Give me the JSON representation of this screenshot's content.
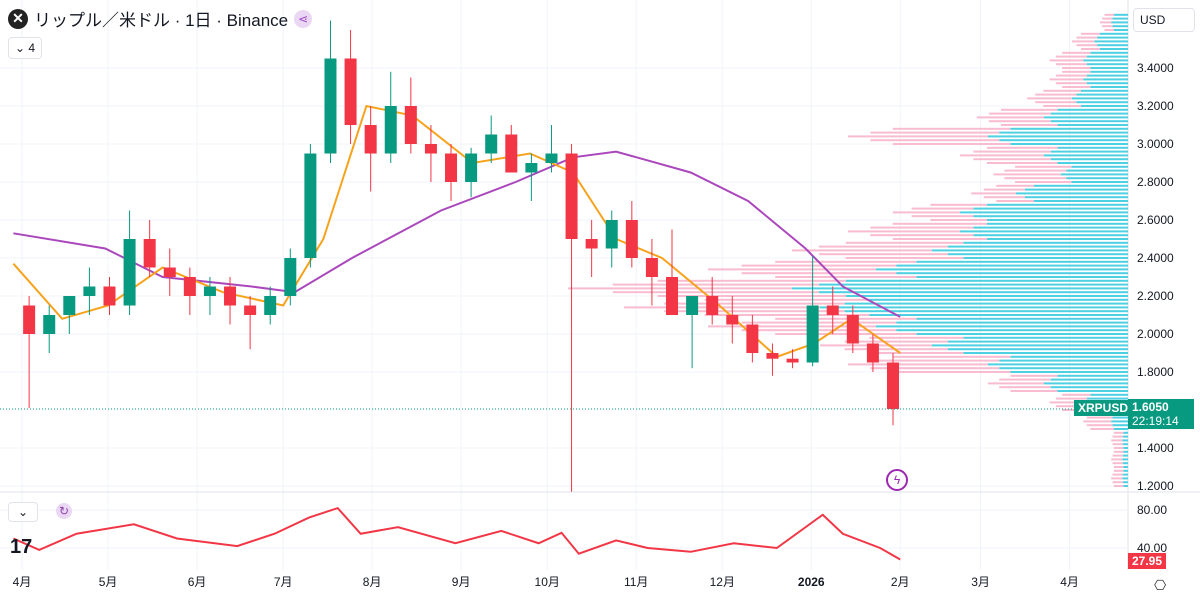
{
  "header": {
    "title": "リップル／米ドル · 1日 · Binance",
    "indicators_count": "4",
    "currency": "USD"
  },
  "price_tag": {
    "symbol": "XRPUSD",
    "price": "1.6050",
    "countdown": "22:19:14",
    "color": "#089981"
  },
  "rsi_tag": {
    "value": "27.95",
    "color": "#f23645"
  },
  "chart_data": [
    {
      "type": "candlestick",
      "yaxis_ticks": [
        "3.4000",
        "3.2000",
        "3.0000",
        "2.8000",
        "2.6000",
        "2.4000",
        "2.2000",
        "2.0000",
        "1.8000",
        "1.4000",
        "1.2000"
      ],
      "ylim": [
        1.15,
        3.7
      ],
      "xaxis_ticks": [
        "4月",
        "5月",
        "6月",
        "7月",
        "8月",
        "9月",
        "10月",
        "11月",
        "12月",
        "2026",
        "2月",
        "3月",
        "4月"
      ],
      "up_color": "#089981",
      "down_color": "#f23645",
      "candles_weekly": [
        [
          "2025-03-31",
          2.15,
          2.2,
          1.61,
          2.0
        ],
        [
          "2025-04-07",
          2.0,
          2.15,
          1.9,
          2.1
        ],
        [
          "2025-04-14",
          2.1,
          2.2,
          2.0,
          2.2
        ],
        [
          "2025-04-21",
          2.2,
          2.35,
          2.1,
          2.25
        ],
        [
          "2025-04-28",
          2.25,
          2.3,
          2.1,
          2.15
        ],
        [
          "2025-05-05",
          2.15,
          2.65,
          2.1,
          2.5
        ],
        [
          "2025-05-12",
          2.5,
          2.6,
          2.3,
          2.35
        ],
        [
          "2025-05-19",
          2.35,
          2.45,
          2.2,
          2.3
        ],
        [
          "2025-05-26",
          2.3,
          2.35,
          2.1,
          2.2
        ],
        [
          "2025-06-02",
          2.2,
          2.3,
          2.1,
          2.25
        ],
        [
          "2025-06-09",
          2.25,
          2.3,
          2.05,
          2.15
        ],
        [
          "2025-06-16",
          2.15,
          2.2,
          1.92,
          2.1
        ],
        [
          "2025-06-23",
          2.1,
          2.25,
          2.05,
          2.2
        ],
        [
          "2025-06-30",
          2.2,
          2.45,
          2.15,
          2.4
        ],
        [
          "2025-07-07",
          2.4,
          3.0,
          2.35,
          2.95
        ],
        [
          "2025-07-14",
          2.95,
          3.65,
          2.9,
          3.45
        ],
        [
          "2025-07-21",
          3.45,
          3.6,
          3.0,
          3.1
        ],
        [
          "2025-07-28",
          3.1,
          3.2,
          2.75,
          2.95
        ],
        [
          "2025-08-04",
          2.95,
          3.38,
          2.9,
          3.2
        ],
        [
          "2025-08-11",
          3.2,
          3.35,
          2.95,
          3.0
        ],
        [
          "2025-08-18",
          3.0,
          3.1,
          2.8,
          2.95
        ],
        [
          "2025-08-25",
          2.95,
          3.0,
          2.7,
          2.8
        ],
        [
          "2025-09-01",
          2.8,
          2.98,
          2.72,
          2.95
        ],
        [
          "2025-09-08",
          2.95,
          3.15,
          2.9,
          3.05
        ],
        [
          "2025-09-15",
          3.05,
          3.1,
          2.85,
          2.85
        ],
        [
          "2025-09-22",
          2.85,
          2.95,
          2.7,
          2.9
        ],
        [
          "2025-09-29",
          2.9,
          3.1,
          2.85,
          2.95
        ],
        [
          "2025-10-06",
          2.95,
          3.0,
          1.17,
          2.5
        ],
        [
          "2025-10-13",
          2.5,
          2.6,
          2.3,
          2.45
        ],
        [
          "2025-10-20",
          2.45,
          2.65,
          2.35,
          2.6
        ],
        [
          "2025-10-27",
          2.6,
          2.7,
          2.35,
          2.4
        ],
        [
          "2025-11-03",
          2.4,
          2.5,
          2.15,
          2.3
        ],
        [
          "2025-11-10",
          2.3,
          2.55,
          2.1,
          2.1
        ],
        [
          "2025-11-17",
          2.1,
          2.2,
          1.82,
          2.2
        ],
        [
          "2025-11-24",
          2.2,
          2.3,
          2.05,
          2.1
        ],
        [
          "2025-12-01",
          2.1,
          2.2,
          1.95,
          2.05
        ],
        [
          "2025-12-08",
          2.05,
          2.1,
          1.85,
          1.9
        ],
        [
          "2025-12-15",
          1.9,
          1.95,
          1.78,
          1.87
        ],
        [
          "2025-12-22",
          1.87,
          1.92,
          1.82,
          1.85
        ],
        [
          "2025-12-29",
          1.85,
          2.41,
          1.83,
          2.15
        ],
        [
          "2026-01-05",
          2.15,
          2.25,
          2.0,
          2.1
        ],
        [
          "2026-01-12",
          2.1,
          2.15,
          1.9,
          1.95
        ],
        [
          "2026-01-19",
          1.95,
          2.0,
          1.8,
          1.85
        ],
        [
          "2026-01-26",
          1.85,
          1.9,
          1.52,
          1.605
        ]
      ],
      "ma_fast": {
        "color": "#f7a21b",
        "points": [
          [
            "2025-03-29",
            2.37
          ],
          [
            "2025-04-15",
            2.08
          ],
          [
            "2025-05-01",
            2.15
          ],
          [
            "2025-05-20",
            2.35
          ],
          [
            "2025-06-10",
            2.22
          ],
          [
            "2025-07-01",
            2.15
          ],
          [
            "2025-07-15",
            2.5
          ],
          [
            "2025-07-30",
            3.2
          ],
          [
            "2025-08-15",
            3.15
          ],
          [
            "2025-09-05",
            2.9
          ],
          [
            "2025-09-25",
            2.95
          ],
          [
            "2025-10-10",
            2.85
          ],
          [
            "2025-10-25",
            2.5
          ],
          [
            "2025-11-10",
            2.4
          ],
          [
            "2025-11-30",
            2.15
          ],
          [
            "2025-12-20",
            1.88
          ],
          [
            "2026-01-02",
            1.95
          ],
          [
            "2026-01-15",
            2.08
          ],
          [
            "2026-02-01",
            1.9
          ]
        ]
      },
      "ma_slow": {
        "color": "#ab47bc",
        "points": [
          [
            "2025-03-29",
            2.53
          ],
          [
            "2025-04-30",
            2.45
          ],
          [
            "2025-05-20",
            2.3
          ],
          [
            "2025-06-20",
            2.25
          ],
          [
            "2025-07-05",
            2.22
          ],
          [
            "2025-07-25",
            2.4
          ],
          [
            "2025-08-25",
            2.65
          ],
          [
            "2025-09-20",
            2.8
          ],
          [
            "2025-10-10",
            2.93
          ],
          [
            "2025-10-25",
            2.96
          ],
          [
            "2025-11-20",
            2.85
          ],
          [
            "2025-12-10",
            2.7
          ],
          [
            "2025-12-30",
            2.45
          ],
          [
            "2026-01-12",
            2.25
          ],
          [
            "2026-02-01",
            2.09
          ]
        ]
      },
      "volume_profile": {
        "up_color": "#4dd0e1",
        "down_color": "#f8bbd0",
        "levels": [
          1.2,
          1.3,
          1.4,
          1.5,
          1.6,
          1.7,
          1.8,
          1.9,
          2.0,
          2.1,
          2.2,
          2.3,
          2.4,
          2.5,
          2.6,
          2.7,
          2.8,
          2.9,
          3.0,
          3.1,
          3.2,
          3.3,
          3.4,
          3.5,
          3.6
        ],
        "up": [
          0.01,
          0.01,
          0.01,
          0.03,
          0.08,
          0.15,
          0.25,
          0.35,
          0.45,
          0.55,
          0.6,
          0.45,
          0.35,
          0.3,
          0.3,
          0.2,
          0.12,
          0.15,
          0.25,
          0.15,
          0.1,
          0.08,
          0.08,
          0.06,
          0.03
        ],
        "down": [
          0.02,
          0.02,
          0.02,
          0.05,
          0.06,
          0.1,
          0.25,
          0.2,
          0.3,
          0.35,
          0.4,
          0.3,
          0.25,
          0.2,
          0.12,
          0.08,
          0.12,
          0.15,
          0.25,
          0.12,
          0.08,
          0.06,
          0.06,
          0.04,
          0.02
        ]
      }
    },
    {
      "type": "line",
      "name": "RSI",
      "yaxis_ticks": [
        "80.00",
        "40.00"
      ],
      "ylim": [
        20,
        90
      ],
      "color": "#f23645",
      "points": [
        [
          "2025-03-29",
          50
        ],
        [
          "2025-04-07",
          38
        ],
        [
          "2025-04-20",
          55
        ],
        [
          "2025-05-10",
          65
        ],
        [
          "2025-05-25",
          50
        ],
        [
          "2025-06-15",
          42
        ],
        [
          "2025-06-28",
          55
        ],
        [
          "2025-07-10",
          72
        ],
        [
          "2025-07-20",
          82
        ],
        [
          "2025-07-28",
          55
        ],
        [
          "2025-08-10",
          62
        ],
        [
          "2025-08-30",
          45
        ],
        [
          "2025-09-15",
          58
        ],
        [
          "2025-09-28",
          45
        ],
        [
          "2025-10-06",
          56
        ],
        [
          "2025-10-12",
          34
        ],
        [
          "2025-10-25",
          48
        ],
        [
          "2025-11-05",
          40
        ],
        [
          "2025-11-20",
          36
        ],
        [
          "2025-12-05",
          45
        ],
        [
          "2025-12-20",
          40
        ],
        [
          "2026-01-05",
          75
        ],
        [
          "2026-01-12",
          55
        ],
        [
          "2026-01-25",
          40
        ],
        [
          "2026-02-01",
          27.95
        ]
      ]
    }
  ]
}
